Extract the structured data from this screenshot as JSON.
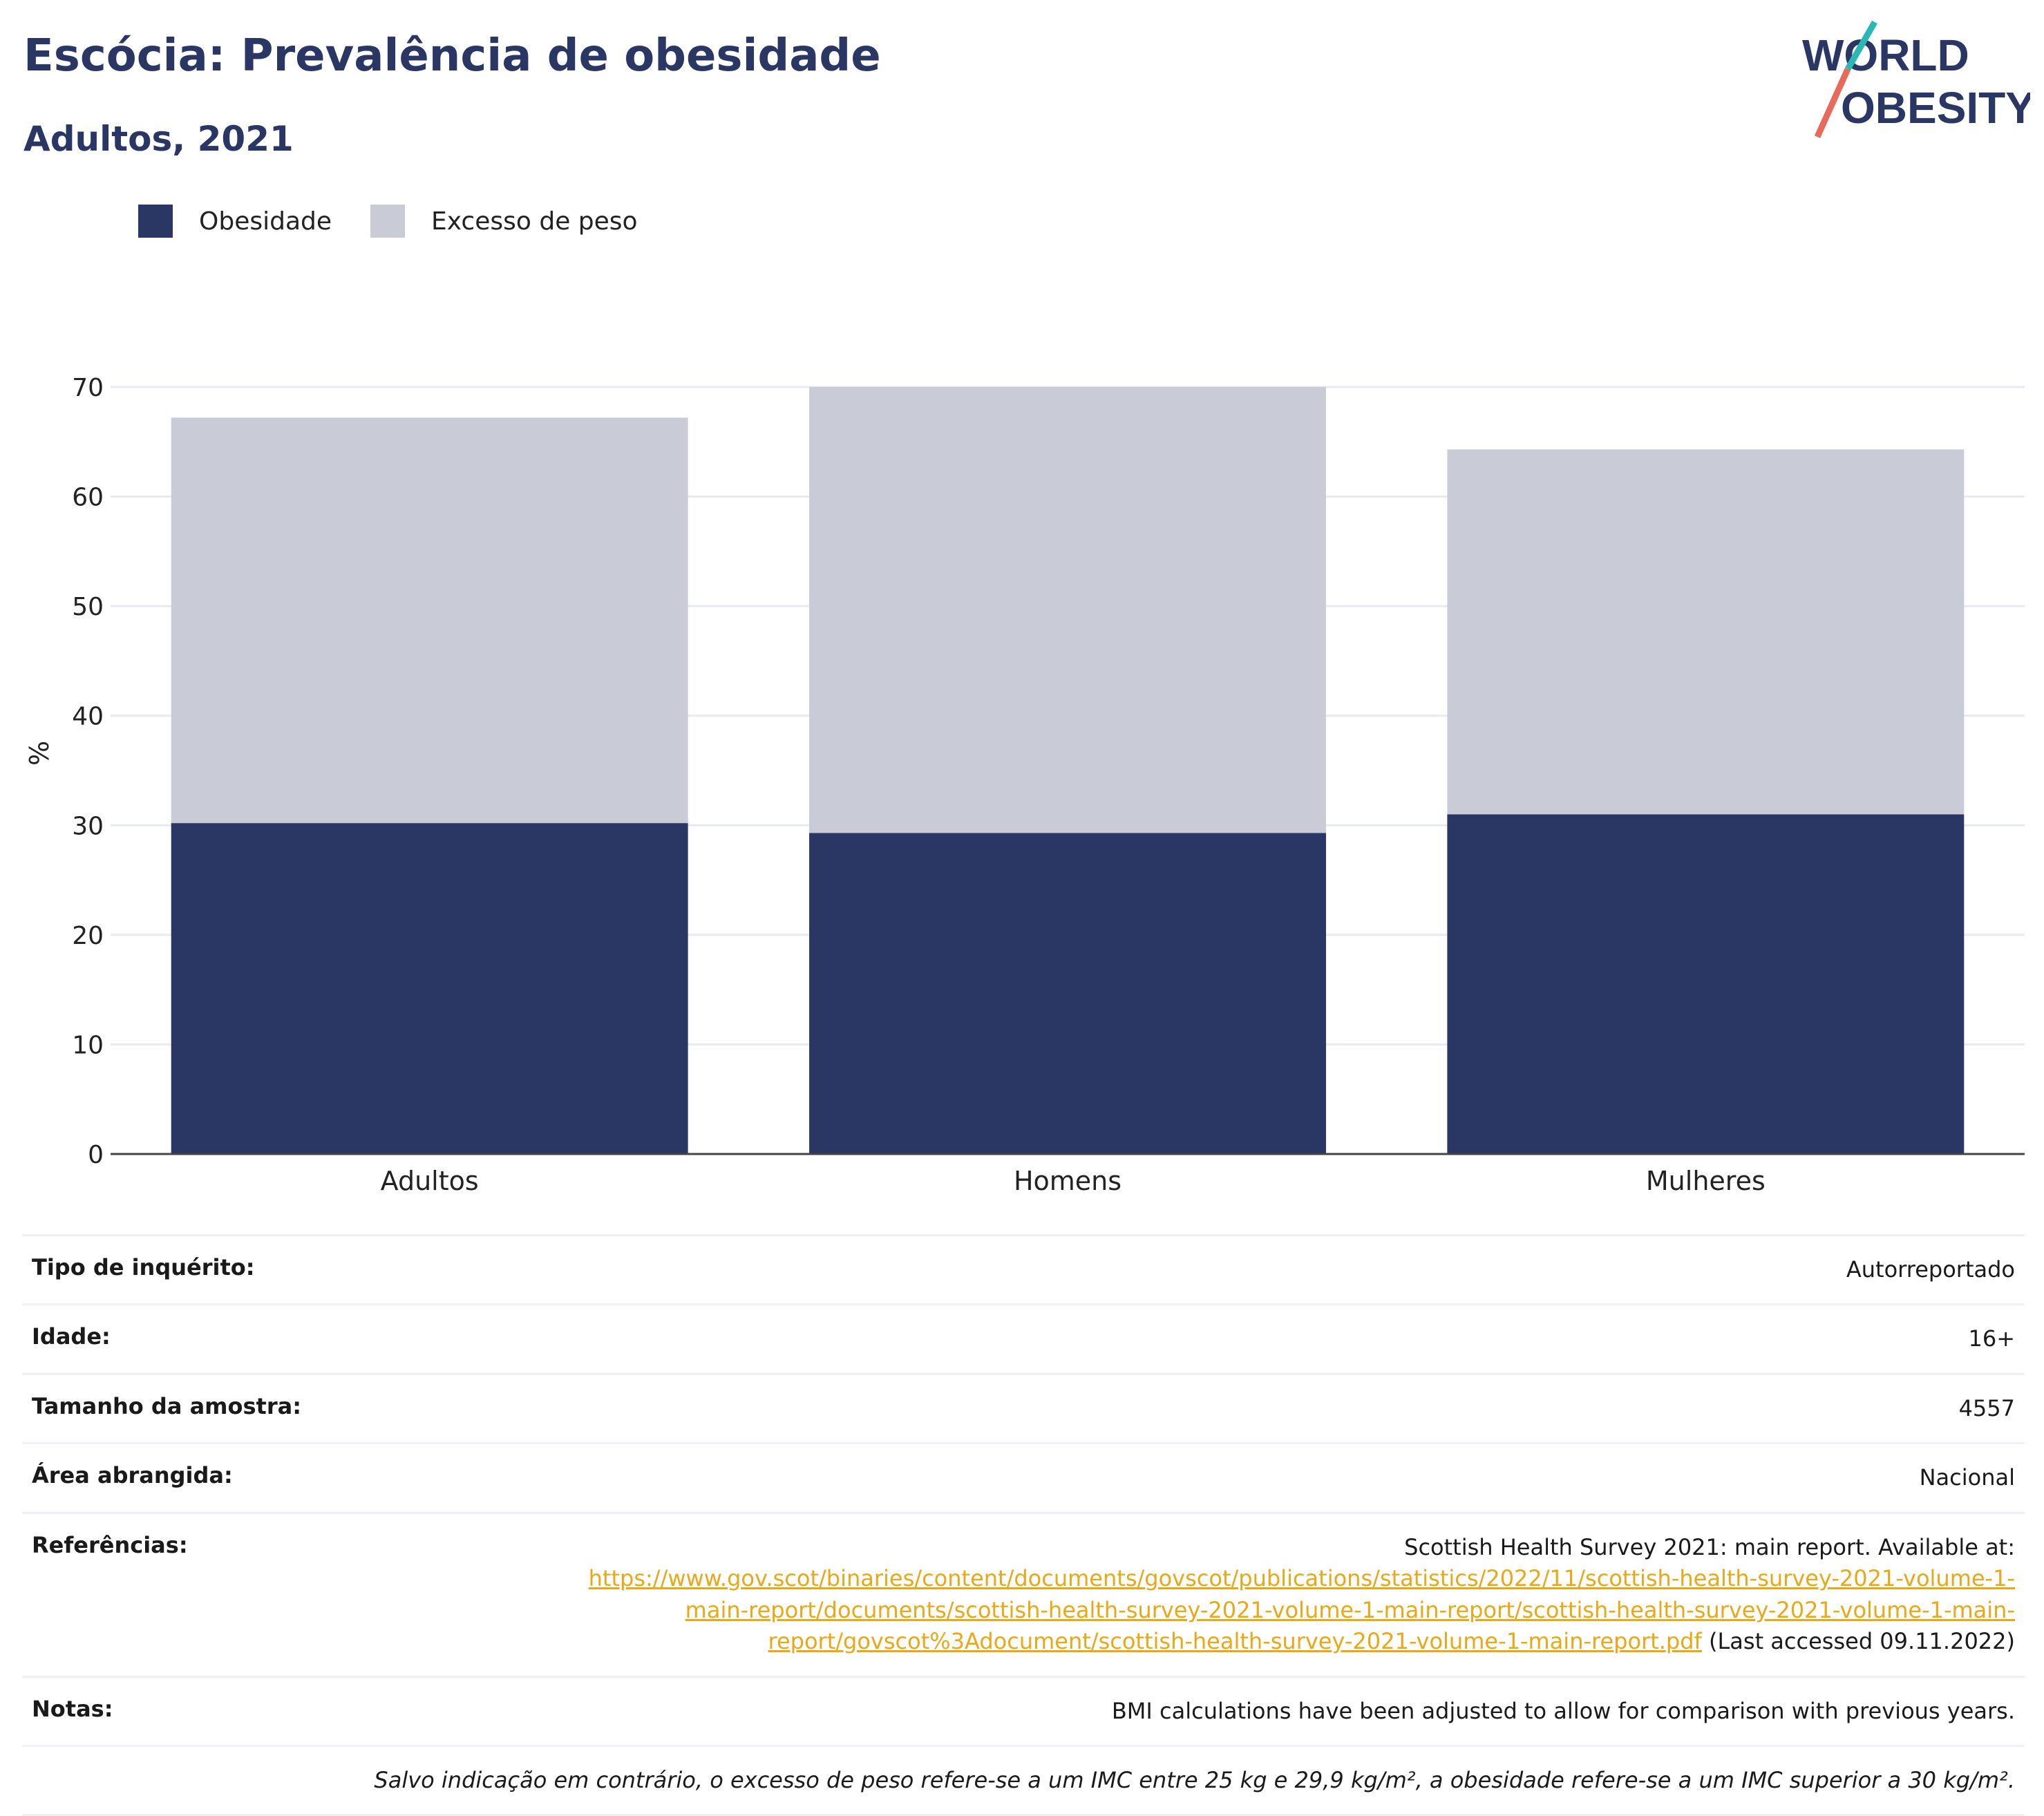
{
  "header": {
    "title": "Escócia: Prevalência de obesidade",
    "subtitle": "Adultos, 2021"
  },
  "logo": {
    "line1": "WORLD",
    "line2": "OBESITY"
  },
  "colors": {
    "obesity": "#2a3764",
    "overweight": "#c9cbd6",
    "link": "#e8a818",
    "title": "#2a3764"
  },
  "legend": {
    "obesity_label": "Obesidade",
    "overweight_label": "Excesso de peso"
  },
  "chart_data": {
    "type": "bar",
    "stacked": true,
    "categories": [
      "Adultos",
      "Homens",
      "Mulheres"
    ],
    "series": [
      {
        "name": "Obesidade",
        "values": [
          30.2,
          29.3,
          31.0
        ]
      },
      {
        "name": "Excesso de peso",
        "values": [
          37.0,
          40.7,
          33.3
        ]
      }
    ],
    "ylabel": "%",
    "ylim": [
      0,
      70
    ],
    "yticks": [
      0,
      10,
      20,
      30,
      40,
      50,
      60,
      70
    ],
    "grid": true,
    "legend_position": "top-left"
  },
  "info": {
    "survey_type": {
      "label": "Tipo de inquérito:",
      "value": "Autorreportado"
    },
    "age": {
      "label": "Idade:",
      "value": "16+"
    },
    "sample_size": {
      "label": "Tamanho da amostra:",
      "value": "4557"
    },
    "area": {
      "label": "Área abrangida:",
      "value": "Nacional"
    },
    "references": {
      "label": "Referências:",
      "text": "Scottish Health Survey 2021: main report. Available at:",
      "link_line1": "https://www.gov.scot/binaries/content/documents/govscot/publications/statistics/2022/11/scottish-health-survey-2021-volume-1-",
      "link_line2": "main-report/documents/scottish-health-survey-2021-volume-1-main-report/scottish-health-survey-2021-volume-1-main-",
      "link_line3": "report/govscot%3Adocument/scottish-health-survey-2021-volume-1-main-report.pdf",
      "accessed": " (Last accessed 09.11.2022)"
    },
    "notes": {
      "label": "Notas:",
      "value": "BMI calculations have been adjusted to allow for comparison with previous years."
    },
    "footnote": "Salvo indicação em contrário, o excesso de peso refere-se a um IMC entre 25 kg e 29,9 kg/m², a obesidade refere-se a um IMC superior a 30 kg/m²."
  }
}
